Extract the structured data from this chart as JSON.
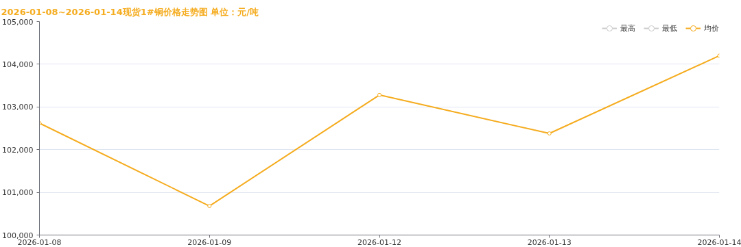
{
  "chart_data": {
    "type": "line",
    "title": "2026-01-08~2026-01-14现货1#铜价格走势图 单位：元/吨",
    "categories": [
      "2026-01-08",
      "2026-01-09",
      "2026-01-12",
      "2026-01-13",
      "2026-01-14"
    ],
    "series": [
      {
        "name": "最高",
        "color": "#cccccc",
        "values": [
          null,
          null,
          null,
          null,
          null
        ]
      },
      {
        "name": "最低",
        "color": "#cccccc",
        "values": [
          null,
          null,
          null,
          null,
          null
        ]
      },
      {
        "name": "均价",
        "color": "#f5ac1f",
        "values": [
          102620,
          100680,
          103280,
          102380,
          104200
        ]
      }
    ],
    "ylim": [
      100000,
      105000
    ],
    "yticks": [
      {
        "value": 100000,
        "label": "100,000"
      },
      {
        "value": 101000,
        "label": "101,000"
      },
      {
        "value": 102000,
        "label": "102,000"
      },
      {
        "value": 103000,
        "label": "103,000"
      },
      {
        "value": 104000,
        "label": "104,000"
      },
      {
        "value": 105000,
        "label": "105,000"
      }
    ],
    "grid": "y",
    "legend": "top right",
    "marker": "circle",
    "line_style": "solid"
  }
}
